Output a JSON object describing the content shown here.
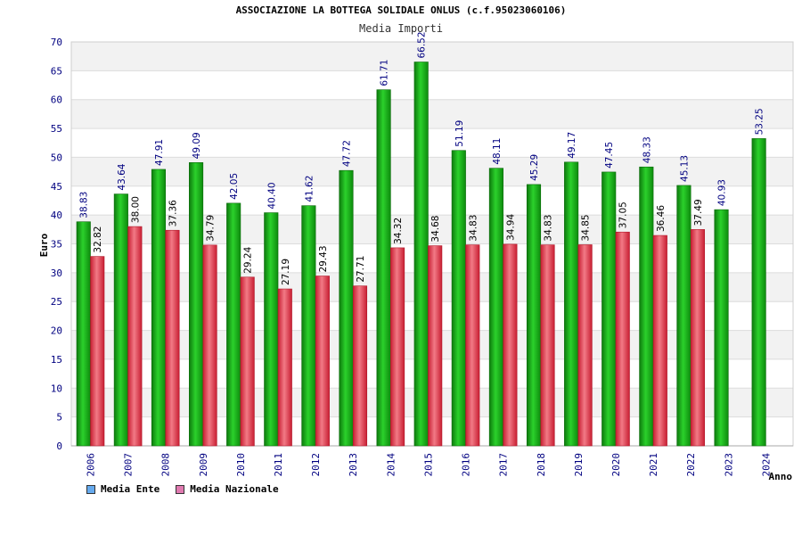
{
  "title": "ASSOCIAZIONE LA BOTTEGA SOLIDALE ONLUS (c.f.95023060106)",
  "subtitle": "Media Importi",
  "colors": {
    "ente": "#22b822",
    "nazionale": "#e64a5a",
    "ente_legend": "#66aaee",
    "nazionale_legend": "#e07ab0"
  },
  "chart_data": {
    "type": "bar",
    "title": "ASSOCIAZIONE LA BOTTEGA SOLIDALE ONLUS (c.f.95023060106)",
    "subtitle": "Media Importi",
    "xlabel": "Anno",
    "ylabel": "Euro",
    "ylim": [
      0,
      70
    ],
    "yticks": [
      0,
      5,
      10,
      15,
      20,
      25,
      30,
      35,
      40,
      45,
      50,
      55,
      60,
      65,
      70
    ],
    "grid": true,
    "legend_position": "bottom-left",
    "categories": [
      "2006",
      "2007",
      "2008",
      "2009",
      "2010",
      "2011",
      "2012",
      "2013",
      "2014",
      "2015",
      "2016",
      "2017",
      "2018",
      "2019",
      "2020",
      "2021",
      "2022",
      "2023",
      "2024"
    ],
    "series": [
      {
        "name": "Media Ente",
        "values": [
          38.83,
          43.64,
          47.91,
          49.09,
          42.05,
          40.4,
          41.62,
          47.72,
          61.71,
          66.52,
          51.19,
          48.11,
          45.29,
          49.17,
          47.45,
          48.33,
          45.13,
          40.93,
          53.25
        ],
        "labels": [
          "38.83",
          "43.64",
          "47.91",
          "49.09",
          "42.05",
          "40.40",
          "41.62",
          "47.72",
          "61.71",
          "66.52",
          "51.19",
          "48.11",
          "45.29",
          "49.17",
          "47.45",
          "48.33",
          "45.13",
          "40.93",
          "53.25"
        ]
      },
      {
        "name": "Media Nazionale",
        "values": [
          32.82,
          38.0,
          37.36,
          34.79,
          29.24,
          27.19,
          29.43,
          27.71,
          34.32,
          34.68,
          34.83,
          34.94,
          34.83,
          34.85,
          37.05,
          36.46,
          37.49,
          null,
          null
        ],
        "labels": [
          "32.82",
          "38.00",
          "37.36",
          "34.79",
          "29.24",
          "27.19",
          "29.43",
          "27.71",
          "34.32",
          "34.68",
          "34.83",
          "34.94",
          "34.83",
          "34.85",
          "37.05",
          "36.46",
          "37.49",
          null,
          null
        ]
      }
    ]
  }
}
